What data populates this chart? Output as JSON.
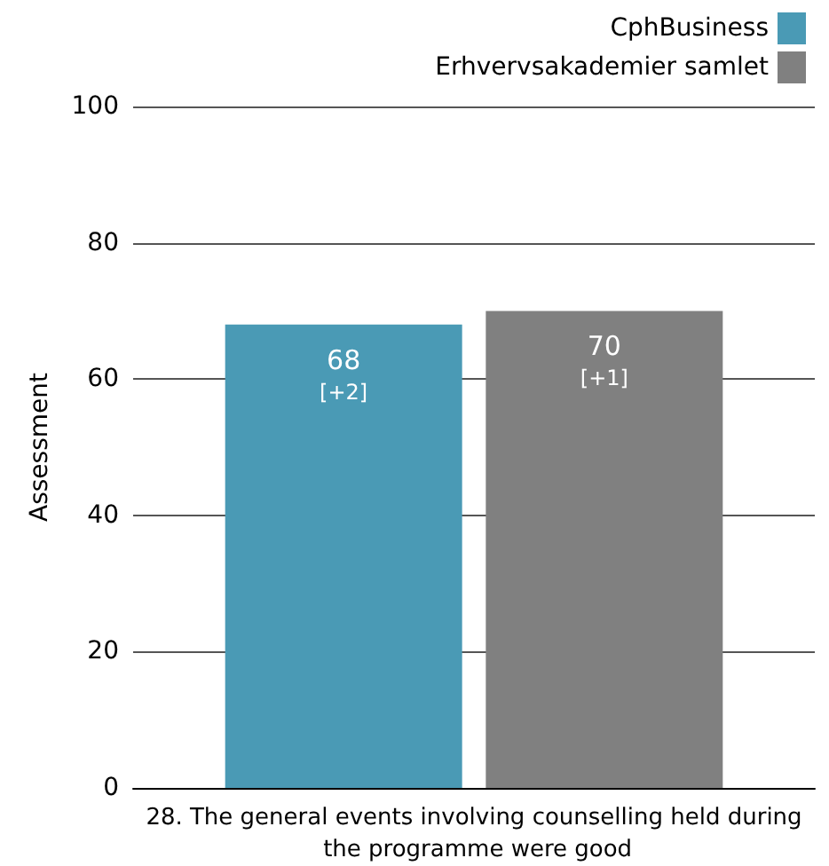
{
  "chart_data": {
    "type": "bar",
    "ylabel": "Assessment",
    "categories": [
      "28. The general events involving counselling held during the programme were good"
    ],
    "series": [
      {
        "name": "CphBusiness",
        "color": "#4a9ab5",
        "values": [
          68
        ],
        "value_labels": [
          "68\n[+2]"
        ]
      },
      {
        "name": "Erhvervsakademier samlet",
        "color": "#808080",
        "values": [
          70
        ],
        "value_labels": [
          "70\n[+1]"
        ]
      }
    ],
    "ylim": [
      0,
      100
    ],
    "yticks": [
      0,
      20,
      40,
      60,
      80,
      100
    ],
    "grid": "y",
    "legend": "top right"
  }
}
